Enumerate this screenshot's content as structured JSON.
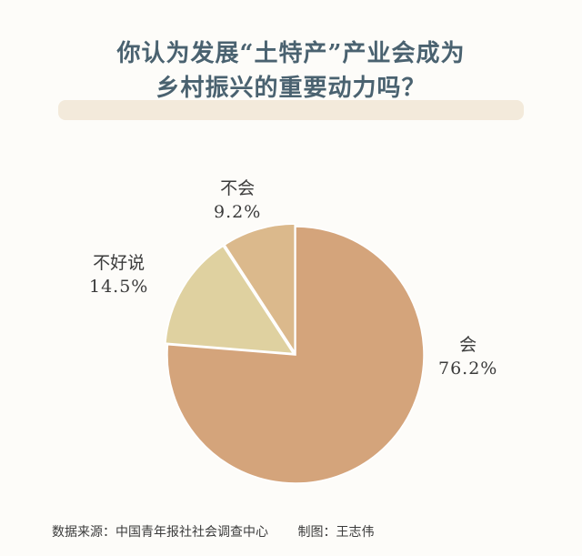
{
  "chart_data": {
    "type": "pie",
    "title": "你认为发展“土特产”产业会成为乡村振兴的重要动力吗？",
    "title_lines": [
      "你认为发展“土特产”产业会成为",
      "乡村振兴的重要动力吗？"
    ],
    "slices": [
      {
        "label": "会",
        "value": 76.2,
        "value_label": "76.2%",
        "color": "#d4a47b"
      },
      {
        "label": "不好说",
        "value": 14.5,
        "value_label": "14.5%",
        "color": "#dfd1a0"
      },
      {
        "label": "不会",
        "value": 9.2,
        "value_label": "9.2%",
        "color": "#dbb98c"
      }
    ],
    "start_angle_deg": 0,
    "direction": "clockwise"
  },
  "footer": {
    "source": "数据来源：中国青年报社社会调查中心",
    "author": "制图：王志伟"
  }
}
